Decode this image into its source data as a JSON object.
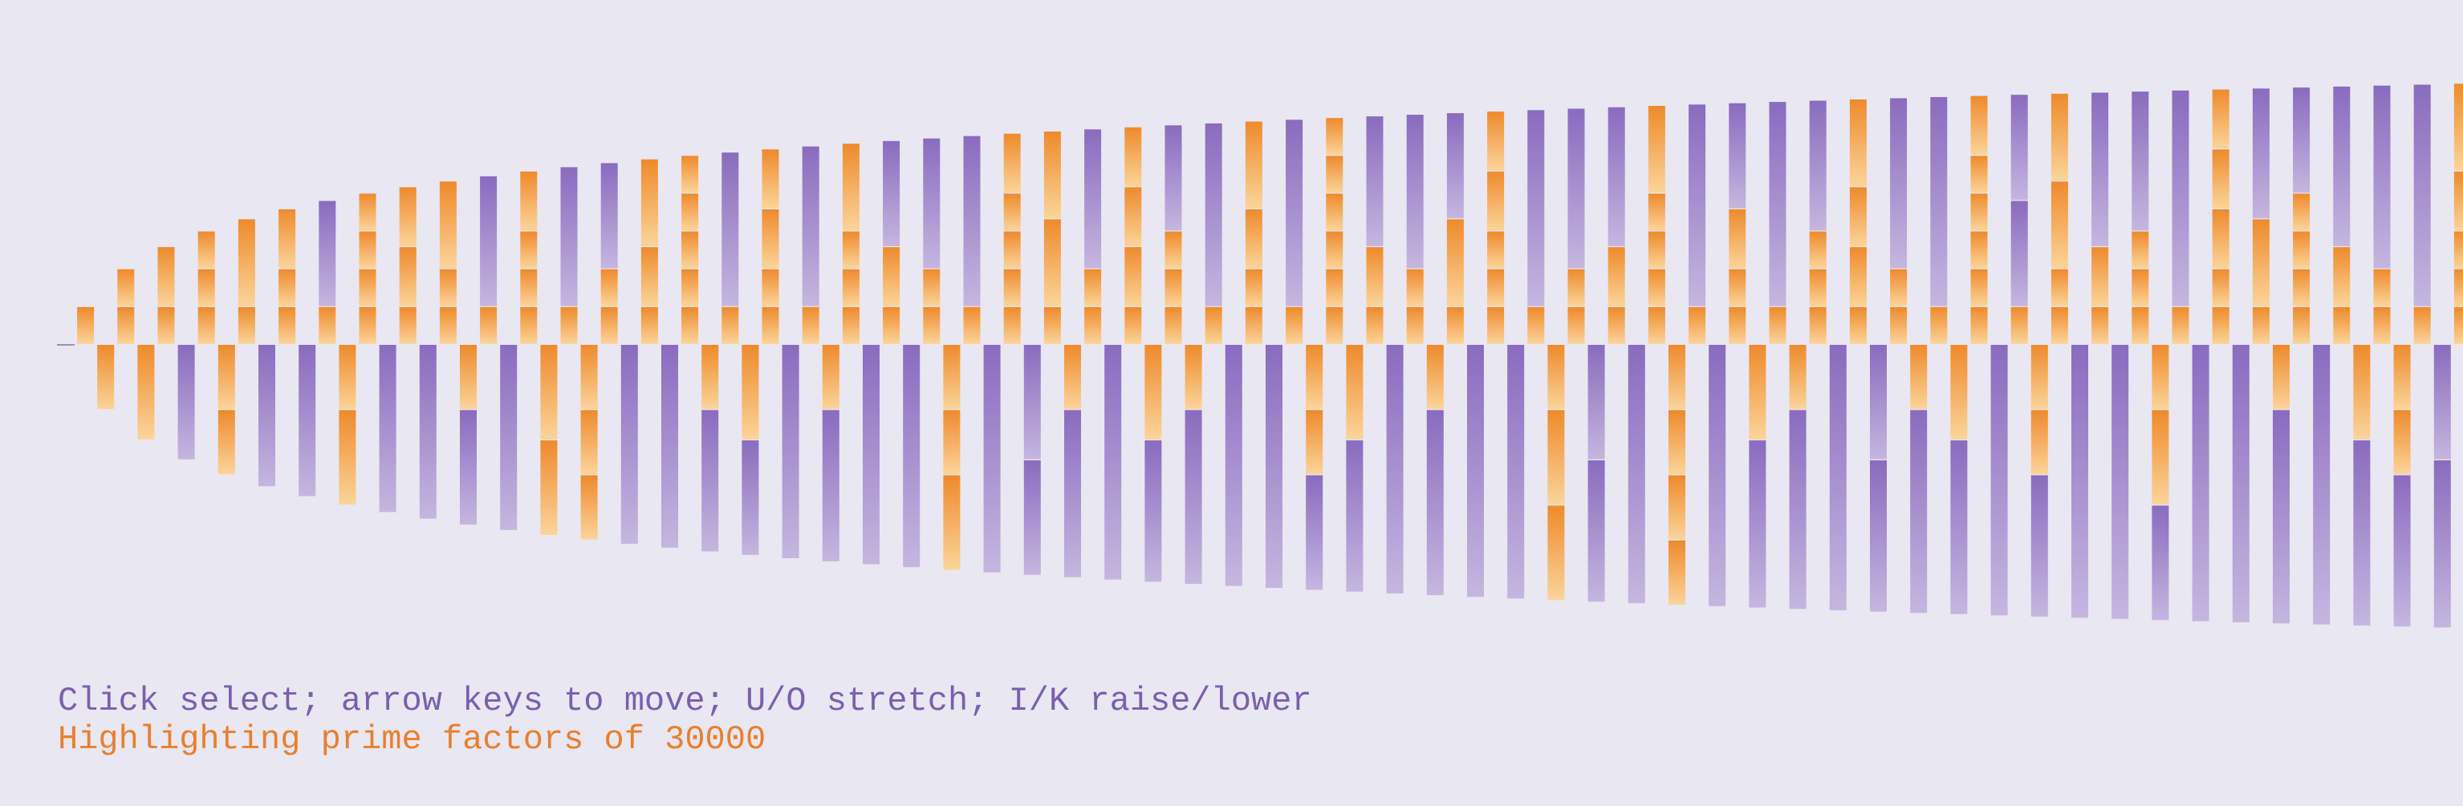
{
  "instructions": "Click select; arrow keys to move; U/O stretch; I/K raise/lower",
  "status": "Highlighting prime factors of 30000",
  "highlight_number": 30000,
  "colors": {
    "background": "#e9e7f1",
    "instructions_text": "#7a5fb0",
    "status_text": "#e8802e",
    "segment_purple_dark": "#8a6bbf",
    "segment_purple_light": "#c5b6df",
    "segment_orange_dark": "#ee8a2c",
    "segment_orange_light": "#fbd49a"
  },
  "series": {
    "first_n": 1,
    "count": 120,
    "direction": "even n rise above the baseline, odd n hang below",
    "segment_rule": "each column is stacked from its prime factors; factors of 30000 are orange"
  }
}
